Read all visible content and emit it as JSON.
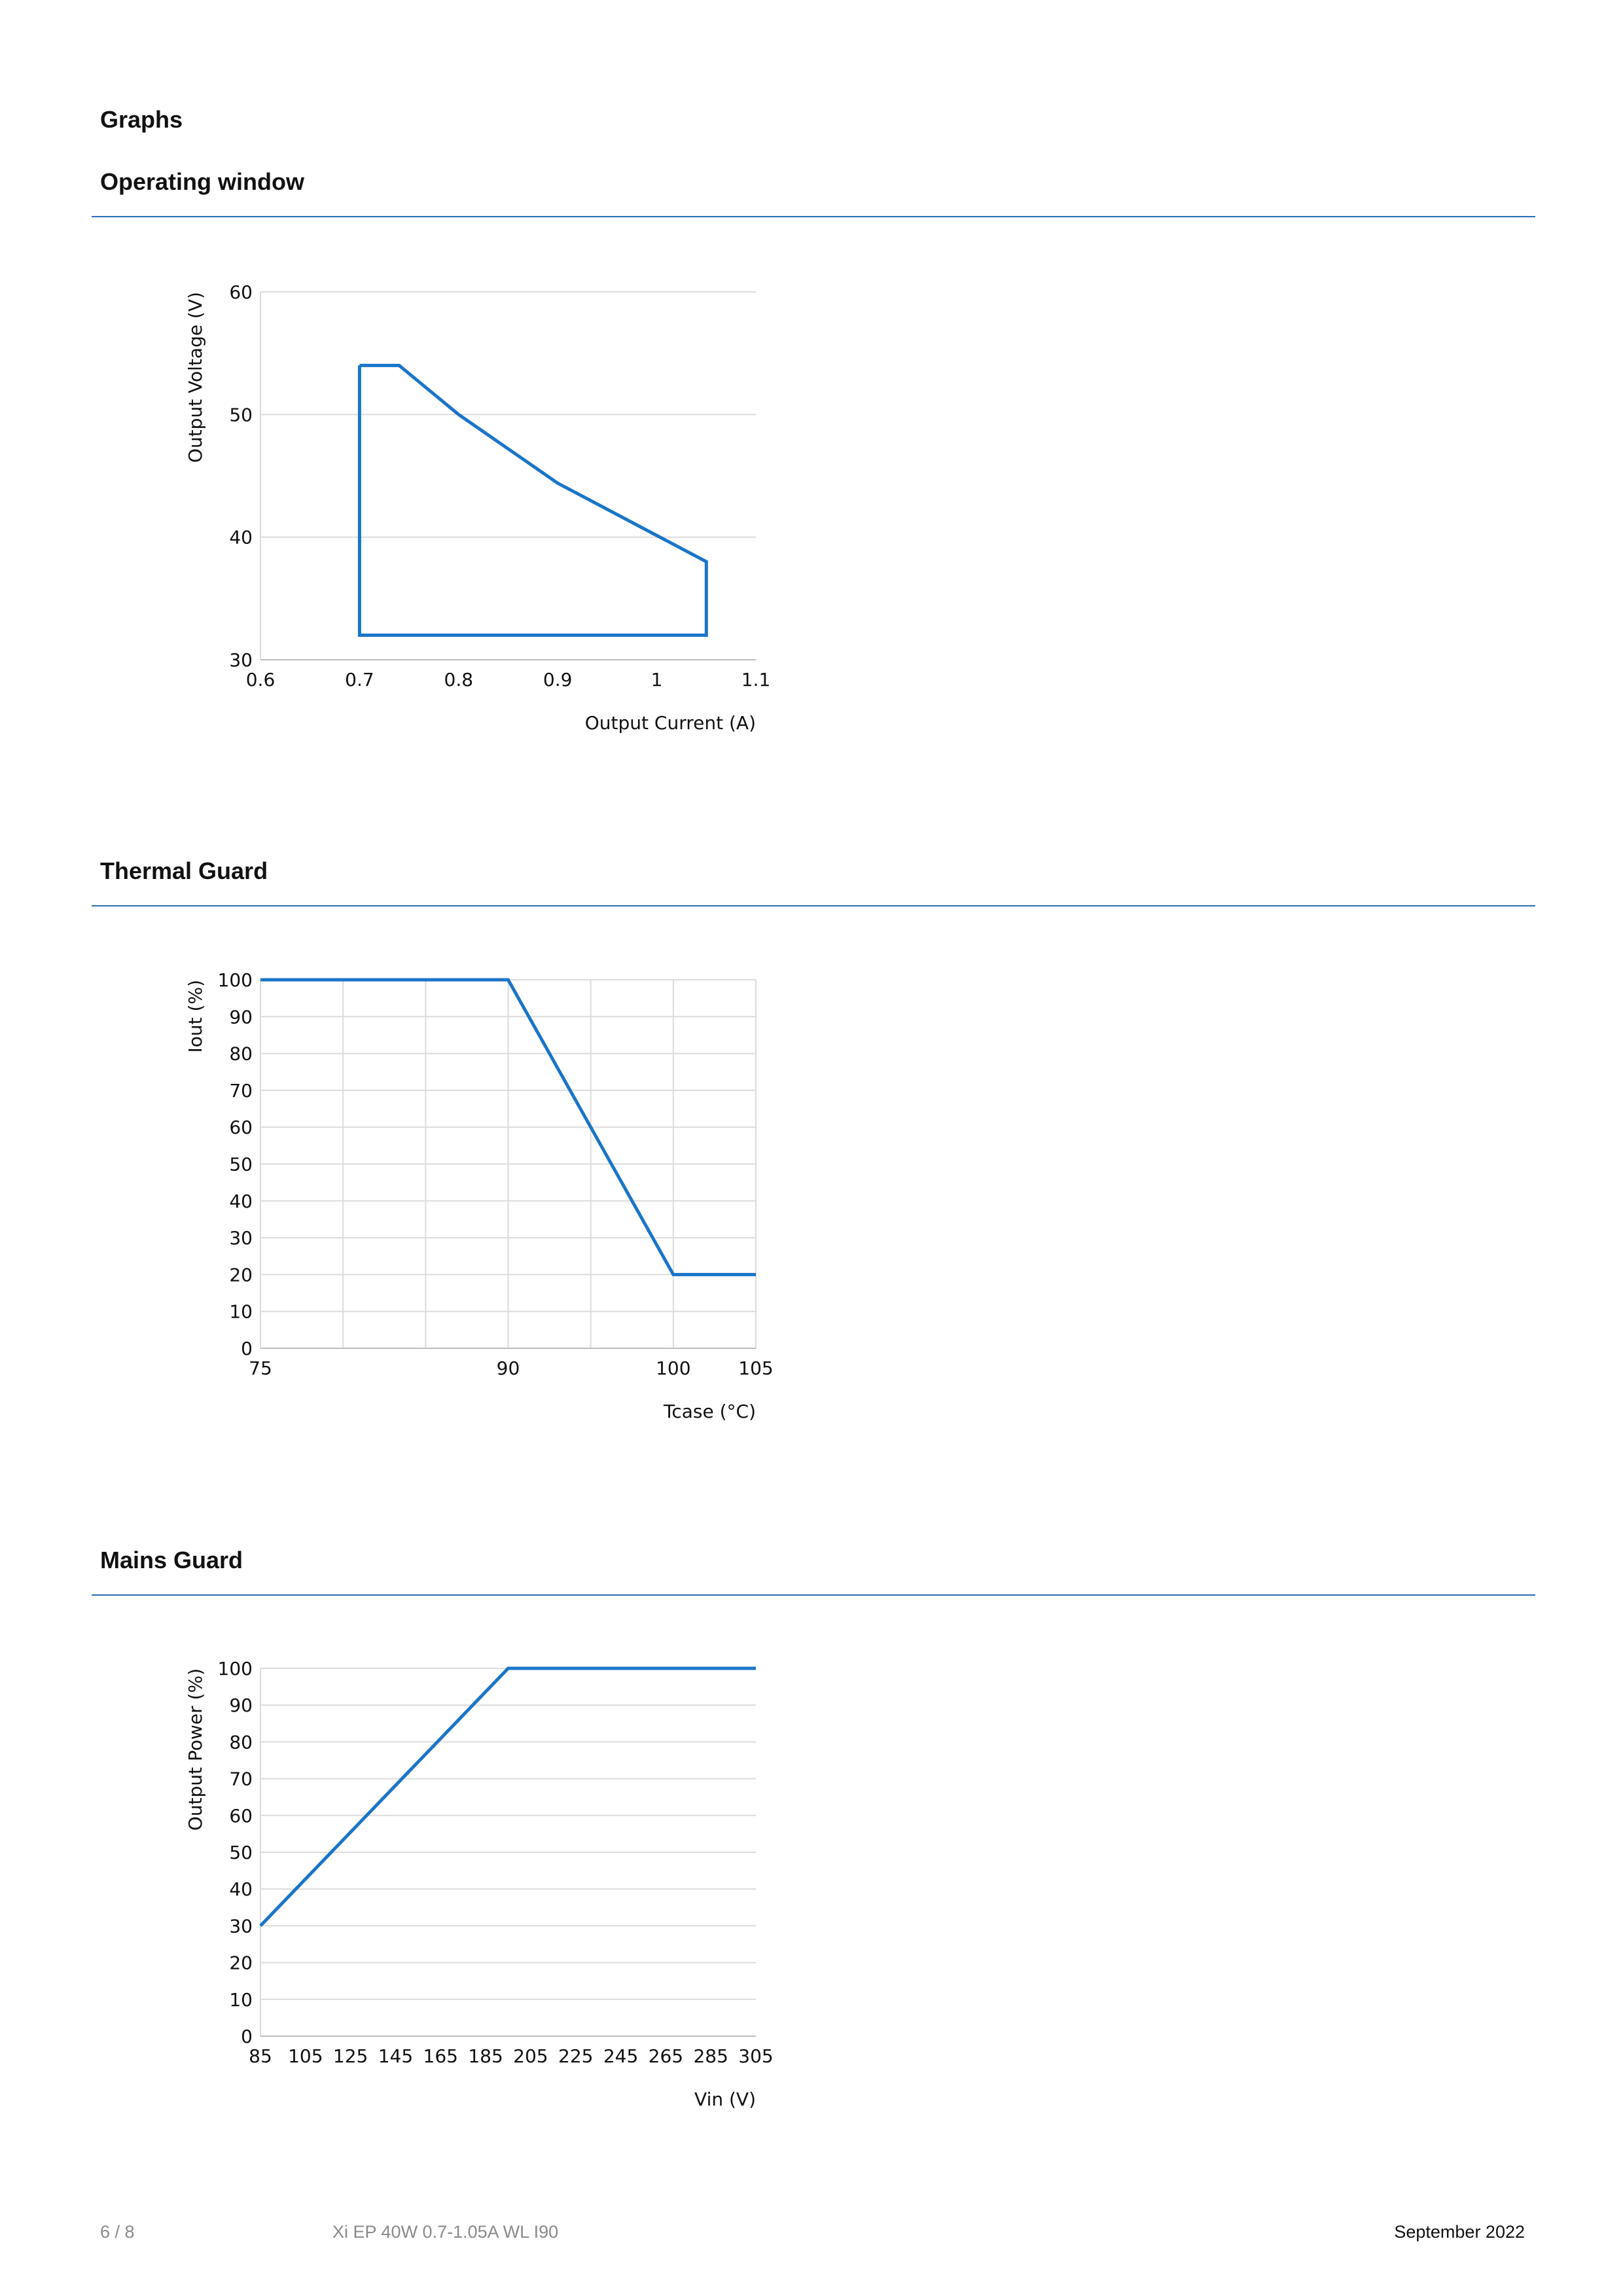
{
  "page": {
    "heading": "Graphs",
    "footer": {
      "page_number": "6 / 8",
      "product": "Xi EP 40W 0.7-1.05A WL I90",
      "date": "September 2022"
    },
    "accent_color": "#1a75c8",
    "rule_color": "#2a6db5",
    "grid_color": "#dcdcdc"
  },
  "sections": [
    {
      "title": "Operating window"
    },
    {
      "title": "Thermal Guard"
    },
    {
      "title": "Mains Guard"
    }
  ],
  "chart_data": [
    {
      "type": "line",
      "title": "Operating window",
      "xlabel": "Output Current (A)",
      "ylabel": "Output Voltage (V)",
      "xlim": [
        0.6,
        1.1
      ],
      "ylim": [
        30,
        60
      ],
      "xticks": [
        0.6,
        0.7,
        0.8,
        0.9,
        1,
        1.1
      ],
      "xtick_labels": [
        "0.6",
        "0.7",
        "0.8",
        "0.9",
        "1",
        "1.1"
      ],
      "yticks": [
        30,
        40,
        50,
        60
      ],
      "ytick_labels": [
        "30",
        "40",
        "50",
        "60"
      ],
      "vertical_grid": [],
      "grid": true,
      "series": [
        {
          "x": [
            0.7,
            0.74,
            0.8,
            0.9,
            1.05,
            1.05,
            0.7,
            0.7
          ],
          "y": [
            54,
            54,
            50,
            44.4,
            38,
            32,
            32,
            54
          ]
        }
      ]
    },
    {
      "type": "line",
      "title": "Thermal Guard",
      "xlabel": "Tcase (°C)",
      "ylabel": "Iout (%)",
      "xlim": [
        75,
        105
      ],
      "ylim": [
        0,
        100
      ],
      "xticks": [
        75,
        90,
        100,
        105
      ],
      "xtick_labels": [
        "75",
        "90",
        "100",
        "105"
      ],
      "yticks": [
        0,
        10,
        20,
        30,
        40,
        50,
        60,
        70,
        80,
        90,
        100
      ],
      "ytick_labels": [
        "0",
        "10",
        "20",
        "30",
        "40",
        "50",
        "60",
        "70",
        "80",
        "90",
        "100"
      ],
      "vertical_grid": [
        80,
        85,
        90,
        95,
        100,
        105
      ],
      "grid": true,
      "series": [
        {
          "x": [
            75,
            90,
            100,
            105
          ],
          "y": [
            100,
            100,
            20,
            20
          ]
        }
      ]
    },
    {
      "type": "line",
      "title": "Mains Guard",
      "xlabel": "Vin (V)",
      "ylabel": "Output Power (%)",
      "xlim": [
        85,
        305
      ],
      "ylim": [
        0,
        100
      ],
      "xticks": [
        85,
        105,
        125,
        145,
        165,
        185,
        205,
        225,
        245,
        265,
        285,
        305
      ],
      "xtick_labels": [
        "85",
        "105",
        "125",
        "145",
        "165",
        "185",
        "205",
        "225",
        "245",
        "265",
        "285",
        "305"
      ],
      "yticks": [
        0,
        10,
        20,
        30,
        40,
        50,
        60,
        70,
        80,
        90,
        100
      ],
      "ytick_labels": [
        "0",
        "10",
        "20",
        "30",
        "40",
        "50",
        "60",
        "70",
        "80",
        "90",
        "100"
      ],
      "vertical_grid": [],
      "grid": true,
      "series": [
        {
          "x": [
            85,
            195,
            305
          ],
          "y": [
            30,
            100,
            100
          ]
        }
      ]
    }
  ]
}
